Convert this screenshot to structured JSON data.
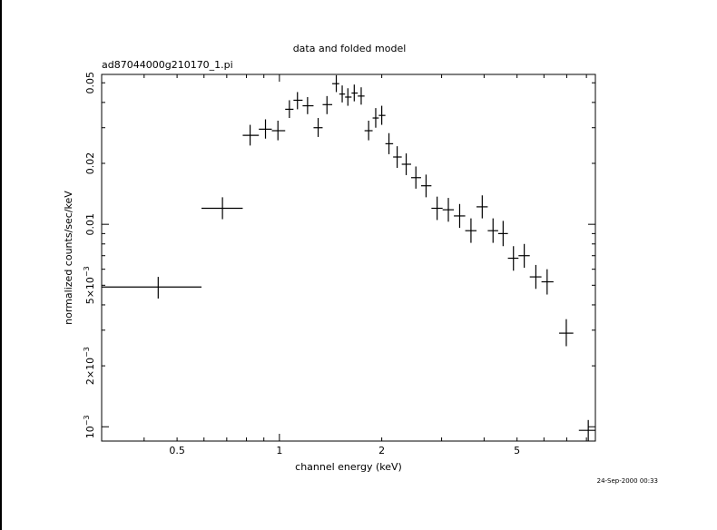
{
  "chart_data": {
    "type": "scatter",
    "title": "data and folded model",
    "subtitle": "ad87044000g210170_1.pi",
    "xlabel": "channel energy (keV)",
    "ylabel": "normalized counts/sec/keV",
    "xscale": "log",
    "yscale": "log",
    "xlim": [
      0.3,
      8.5
    ],
    "ylim": [
      0.00085,
      0.055
    ],
    "x_tick_labels": [
      {
        "value": 0.5,
        "label": "0.5"
      },
      {
        "value": 1,
        "label": "1"
      },
      {
        "value": 2,
        "label": "2"
      },
      {
        "value": 5,
        "label": "5"
      }
    ],
    "y_tick_labels": [
      {
        "value": 0.001,
        "base": "10",
        "exp": "−3",
        "coef": ""
      },
      {
        "value": 0.002,
        "base": "2×10",
        "exp": "−3",
        "coef": ""
      },
      {
        "value": 0.005,
        "base": "5×10",
        "exp": "−3",
        "coef": ""
      },
      {
        "value": 0.01,
        "base": "0.01",
        "exp": "",
        "coef": ""
      },
      {
        "value": 0.02,
        "base": "0.02",
        "exp": "",
        "coef": ""
      },
      {
        "value": 0.05,
        "base": "0.05",
        "exp": "",
        "coef": ""
      }
    ],
    "grid": false,
    "series": [
      {
        "points": [
          {
            "x": 0.44,
            "xlo": 0.3,
            "xhi": 0.59,
            "y": 0.0049,
            "ylo": 0.0043,
            "yhi": 0.0055
          },
          {
            "x": 0.68,
            "xlo": 0.59,
            "xhi": 0.78,
            "y": 0.012,
            "ylo": 0.0106,
            "yhi": 0.0136
          },
          {
            "x": 0.82,
            "xlo": 0.78,
            "xhi": 0.87,
            "y": 0.0275,
            "ylo": 0.0245,
            "yhi": 0.031
          },
          {
            "x": 0.91,
            "xlo": 0.87,
            "xhi": 0.95,
            "y": 0.0295,
            "ylo": 0.0265,
            "yhi": 0.033
          },
          {
            "x": 0.99,
            "xlo": 0.95,
            "xhi": 1.04,
            "y": 0.029,
            "ylo": 0.026,
            "yhi": 0.0325
          },
          {
            "x": 1.07,
            "xlo": 1.04,
            "xhi": 1.1,
            "y": 0.037,
            "ylo": 0.0335,
            "yhi": 0.041
          },
          {
            "x": 1.13,
            "xlo": 1.1,
            "xhi": 1.17,
            "y": 0.041,
            "ylo": 0.037,
            "yhi": 0.045
          },
          {
            "x": 1.21,
            "xlo": 1.17,
            "xhi": 1.26,
            "y": 0.0385,
            "ylo": 0.035,
            "yhi": 0.0425
          },
          {
            "x": 1.3,
            "xlo": 1.26,
            "xhi": 1.34,
            "y": 0.03,
            "ylo": 0.027,
            "yhi": 0.0335
          },
          {
            "x": 1.38,
            "xlo": 1.34,
            "xhi": 1.43,
            "y": 0.039,
            "ylo": 0.035,
            "yhi": 0.043
          },
          {
            "x": 1.47,
            "xlo": 1.43,
            "xhi": 1.5,
            "y": 0.0495,
            "ylo": 0.045,
            "yhi": 0.0545
          },
          {
            "x": 1.53,
            "xlo": 1.5,
            "xhi": 1.56,
            "y": 0.044,
            "ylo": 0.04,
            "yhi": 0.0485
          },
          {
            "x": 1.59,
            "xlo": 1.56,
            "xhi": 1.63,
            "y": 0.0425,
            "ylo": 0.0385,
            "yhi": 0.047
          },
          {
            "x": 1.66,
            "xlo": 1.63,
            "xhi": 1.7,
            "y": 0.0445,
            "ylo": 0.0405,
            "yhi": 0.049
          },
          {
            "x": 1.74,
            "xlo": 1.7,
            "xhi": 1.78,
            "y": 0.043,
            "ylo": 0.039,
            "yhi": 0.0475
          },
          {
            "x": 1.83,
            "xlo": 1.78,
            "xhi": 1.88,
            "y": 0.029,
            "ylo": 0.026,
            "yhi": 0.0325
          },
          {
            "x": 1.92,
            "xlo": 1.88,
            "xhi": 1.96,
            "y": 0.0335,
            "ylo": 0.03,
            "yhi": 0.0375
          },
          {
            "x": 2.0,
            "xlo": 1.96,
            "xhi": 2.05,
            "y": 0.0345,
            "ylo": 0.031,
            "yhi": 0.0385
          },
          {
            "x": 2.1,
            "xlo": 2.05,
            "xhi": 2.16,
            "y": 0.025,
            "ylo": 0.0222,
            "yhi": 0.0282
          },
          {
            "x": 2.22,
            "xlo": 2.16,
            "xhi": 2.29,
            "y": 0.0215,
            "ylo": 0.019,
            "yhi": 0.0243
          },
          {
            "x": 2.36,
            "xlo": 2.29,
            "xhi": 2.44,
            "y": 0.0198,
            "ylo": 0.0175,
            "yhi": 0.0224
          },
          {
            "x": 2.52,
            "xlo": 2.44,
            "xhi": 2.61,
            "y": 0.017,
            "ylo": 0.015,
            "yhi": 0.0193
          },
          {
            "x": 2.7,
            "xlo": 2.61,
            "xhi": 2.8,
            "y": 0.0155,
            "ylo": 0.0136,
            "yhi": 0.0176
          },
          {
            "x": 2.91,
            "xlo": 2.8,
            "xhi": 3.02,
            "y": 0.012,
            "ylo": 0.0105,
            "yhi": 0.0137
          },
          {
            "x": 3.14,
            "xlo": 3.02,
            "xhi": 3.26,
            "y": 0.0118,
            "ylo": 0.0103,
            "yhi": 0.0135
          },
          {
            "x": 3.39,
            "xlo": 3.26,
            "xhi": 3.52,
            "y": 0.011,
            "ylo": 0.0096,
            "yhi": 0.0126
          },
          {
            "x": 3.66,
            "xlo": 3.52,
            "xhi": 3.8,
            "y": 0.0093,
            "ylo": 0.0081,
            "yhi": 0.0107
          },
          {
            "x": 3.95,
            "xlo": 3.8,
            "xhi": 4.1,
            "y": 0.0122,
            "ylo": 0.0107,
            "yhi": 0.0139
          },
          {
            "x": 4.25,
            "xlo": 4.1,
            "xhi": 4.4,
            "y": 0.0093,
            "ylo": 0.0081,
            "yhi": 0.0107
          },
          {
            "x": 4.55,
            "xlo": 4.4,
            "xhi": 4.7,
            "y": 0.009,
            "ylo": 0.0078,
            "yhi": 0.0104
          },
          {
            "x": 4.88,
            "xlo": 4.7,
            "xhi": 5.05,
            "y": 0.0068,
            "ylo": 0.0059,
            "yhi": 0.0078
          },
          {
            "x": 5.25,
            "xlo": 5.05,
            "xhi": 5.45,
            "y": 0.007,
            "ylo": 0.0061,
            "yhi": 0.008
          },
          {
            "x": 5.68,
            "xlo": 5.45,
            "xhi": 5.9,
            "y": 0.0055,
            "ylo": 0.0048,
            "yhi": 0.0063
          },
          {
            "x": 6.13,
            "xlo": 5.9,
            "xhi": 6.4,
            "y": 0.0052,
            "ylo": 0.0045,
            "yhi": 0.006
          },
          {
            "x": 6.98,
            "xlo": 6.65,
            "xhi": 7.32,
            "y": 0.0029,
            "ylo": 0.0025,
            "yhi": 0.0034
          },
          {
            "x": 8.1,
            "xlo": 7.6,
            "xhi": 8.5,
            "y": 0.00096,
            "ylo": 0.00085,
            "yhi": 0.00108
          }
        ]
      }
    ]
  },
  "footer": {
    "timestamp": "24-Sep-2000 00:33"
  }
}
